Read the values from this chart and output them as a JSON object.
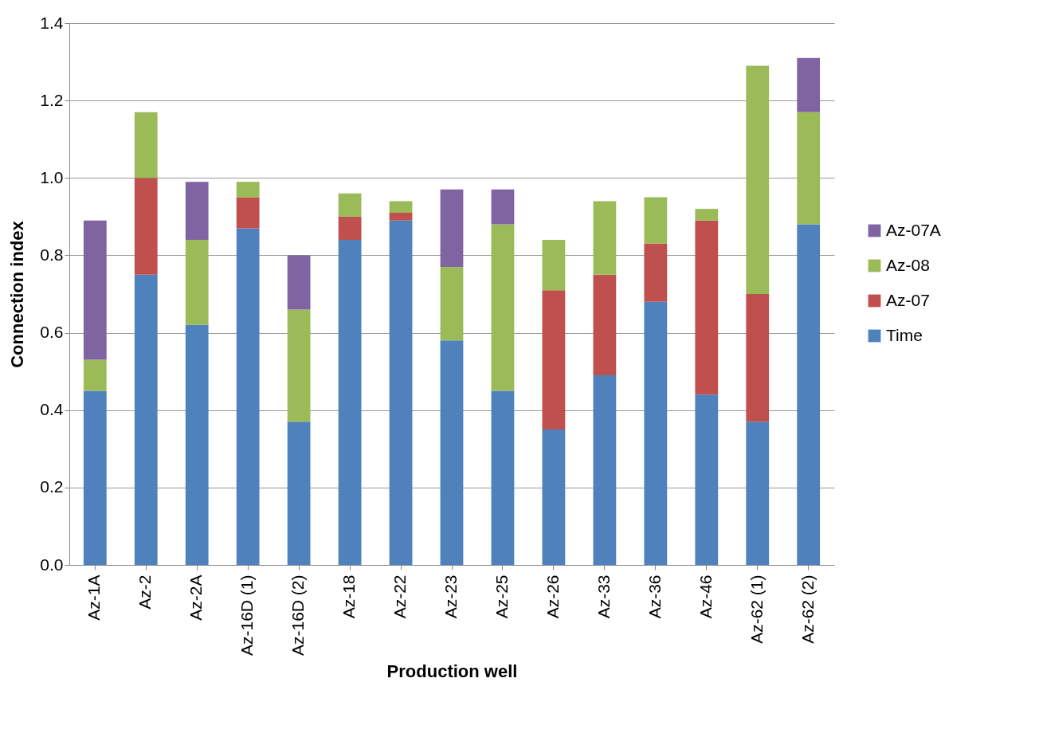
{
  "chart_data": {
    "type": "bar",
    "stacked": true,
    "xlabel": "Production well",
    "ylabel": "Connection index",
    "categories": [
      "Az-1A",
      "Az-2",
      "Az-2A",
      "Az-16D (1)",
      "Az-16D (2)",
      "Az-18",
      "Az-22",
      "Az-23",
      "Az-25",
      "Az-26",
      "Az-33",
      "Az-36",
      "Az-46",
      "Az-62 (1)",
      "Az-62 (2)"
    ],
    "series": [
      {
        "name": "Time",
        "color": "#4f81bd",
        "values": [
          0.45,
          0.75,
          0.62,
          0.87,
          0.37,
          0.84,
          0.89,
          0.58,
          0.45,
          0.35,
          0.49,
          0.68,
          0.44,
          0.37,
          0.88
        ]
      },
      {
        "name": "Az-07",
        "color": "#c0504d",
        "values": [
          null,
          0.25,
          null,
          0.08,
          null,
          0.06,
          0.02,
          null,
          null,
          0.36,
          0.26,
          0.15,
          0.45,
          0.33,
          null
        ]
      },
      {
        "name": "Az-08",
        "color": "#9bbb59",
        "values": [
          0.08,
          0.17,
          0.22,
          0.04,
          0.29,
          0.06,
          0.03,
          0.19,
          0.43,
          0.13,
          0.19,
          0.12,
          0.03,
          0.59,
          0.29
        ]
      },
      {
        "name": "Az-07A",
        "color": "#8064a2",
        "values": [
          0.36,
          null,
          0.15,
          null,
          0.14,
          null,
          null,
          0.2,
          0.09,
          null,
          null,
          null,
          null,
          null,
          0.14
        ]
      }
    ],
    "ylim": [
      0,
      1.4
    ],
    "yticks": [
      {
        "value": 0,
        "label": "0.0"
      },
      0.2,
      0.4,
      0.6,
      0.8,
      {
        "value": 1,
        "label": "1.0"
      },
      1.2,
      1.4
    ],
    "grid": "y",
    "legend": "right"
  }
}
